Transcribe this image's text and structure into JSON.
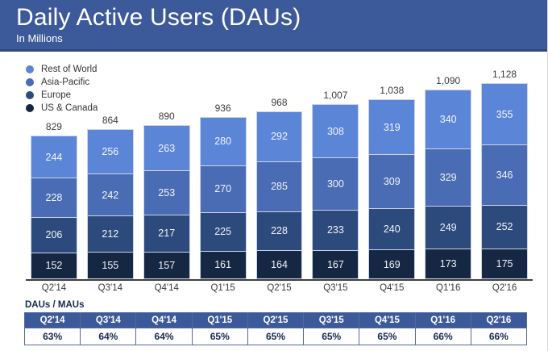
{
  "header": {
    "title": "Daily Active Users (DAUs)",
    "subtitle": "In Millions"
  },
  "legend": [
    {
      "label": "Rest of World",
      "color": "#5b86d8"
    },
    {
      "label": "Asia-Pacific",
      "color": "#4a6cb4"
    },
    {
      "label": "Europe",
      "color": "#2c4a7c"
    },
    {
      "label": "US & Canada",
      "color": "#152743"
    }
  ],
  "chart_data": {
    "type": "bar",
    "stacked": true,
    "title": "Daily Active Users (DAUs)",
    "subtitle": "In Millions",
    "legend_position": "top-left",
    "grid": false,
    "ylim": [
      0,
      1200
    ],
    "categories": [
      "Q2'14",
      "Q3'14",
      "Q4'14",
      "Q1'15",
      "Q2'15",
      "Q3'15",
      "Q4'15",
      "Q1'16",
      "Q2'16"
    ],
    "series": [
      {
        "name": "Rest of World",
        "color": "#5b86d8",
        "values": [
          244,
          256,
          263,
          280,
          292,
          308,
          319,
          340,
          355
        ]
      },
      {
        "name": "Asia-Pacific",
        "color": "#4a6cb4",
        "values": [
          228,
          242,
          253,
          270,
          285,
          300,
          309,
          329,
          346
        ]
      },
      {
        "name": "Europe",
        "color": "#2c4a7c",
        "values": [
          206,
          212,
          217,
          225,
          228,
          233,
          240,
          249,
          252
        ]
      },
      {
        "name": "US & Canada",
        "color": "#152743",
        "values": [
          152,
          155,
          157,
          161,
          164,
          167,
          169,
          173,
          175
        ]
      }
    ],
    "totals": [
      "829",
      "864",
      "890",
      "936",
      "968",
      "1,007",
      "1,038",
      "1,090",
      "1,128"
    ]
  },
  "table": {
    "label": "DAUs / MAUs",
    "columns": [
      "Q2'14",
      "Q3'14",
      "Q4'14",
      "Q1'15",
      "Q2'15",
      "Q3'15",
      "Q4'15",
      "Q1'16",
      "Q2'16"
    ],
    "values": [
      "63%",
      "64%",
      "64%",
      "65%",
      "65%",
      "65%",
      "65%",
      "66%",
      "66%"
    ]
  },
  "colors": {
    "banner_bg": "#3c5a99",
    "banner_border": "#31497e",
    "axis_line": "#3f3f3f",
    "table_border": "#55689a",
    "table_header_bg": "#3c5a99"
  }
}
